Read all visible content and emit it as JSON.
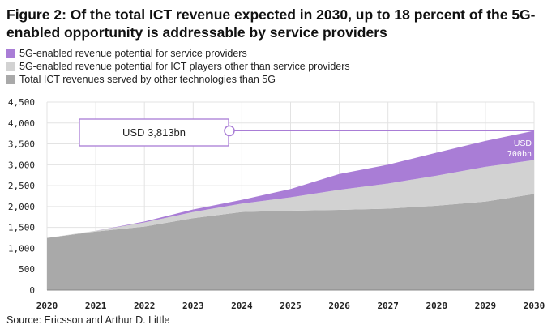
{
  "title": "Figure 2: Of the total ICT revenue expected in 2030, up to 18 percent of the 5G-enabled opportunity is addressable by service providers",
  "source": "Source: Ericsson and Arthur D. Little",
  "colors": {
    "purple": "#a97dd6",
    "light_gray": "#d2d2d2",
    "dark_gray": "#a9a9a9",
    "callout": "#a97dd6"
  },
  "chart_data": {
    "type": "area",
    "stacked": true,
    "x": [
      2020,
      2021,
      2022,
      2023,
      2024,
      2025,
      2026,
      2027,
      2028,
      2029,
      2030
    ],
    "series": [
      {
        "name": "Total ICT revenues served by other technologies than 5G",
        "color": "#a9a9a9",
        "values": [
          1250,
          1400,
          1520,
          1720,
          1870,
          1900,
          1920,
          1950,
          2020,
          2120,
          2300
        ]
      },
      {
        "name": "5G-enabled revenue potential for ICT players other than service providers",
        "color": "#d2d2d2",
        "values": [
          0,
          20,
          100,
          150,
          200,
          320,
          480,
          600,
          720,
          830,
          813
        ]
      },
      {
        "name": "5G-enabled revenue potential for service providers",
        "color": "#a97dd6",
        "values": [
          0,
          0,
          20,
          60,
          90,
          200,
          380,
          450,
          550,
          620,
          700
        ]
      }
    ],
    "ylim": [
      0,
      4500
    ],
    "yticks": [
      "0",
      "500",
      "1,000",
      "1,500",
      "2,000",
      "2,500",
      "3,000",
      "3,500",
      "4,000",
      "4,500"
    ],
    "xticks": [
      "2020",
      "2021",
      "2022",
      "2023",
      "2024",
      "2025",
      "2026",
      "2027",
      "2028",
      "2029",
      "2030"
    ],
    "grid": true,
    "annotations": {
      "total_label": "USD 3,813bn",
      "total_value": 3813,
      "sp_label_line1": "USD",
      "sp_label_line2": "700bn"
    }
  }
}
